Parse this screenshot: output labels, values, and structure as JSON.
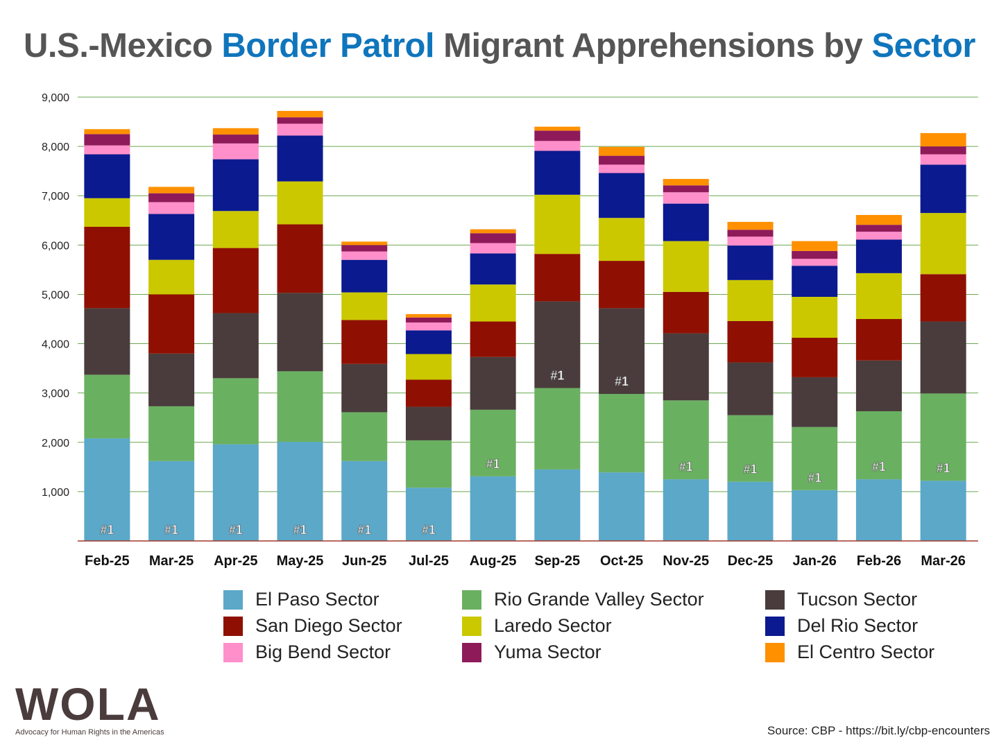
{
  "title": {
    "parts": [
      {
        "text": "U.S.-Mexico ",
        "highlight": false
      },
      {
        "text": "Border Patrol",
        "highlight": true
      },
      {
        "text": " Migrant Apprehensions by ",
        "highlight": false
      },
      {
        "text": "Sector",
        "highlight": true
      }
    ]
  },
  "chart_data": {
    "type": "stacked-bar",
    "title": "U.S.-Mexico Border Patrol Migrant Apprehensions by Sector",
    "categories": [
      "Feb-25",
      "Mar-25",
      "Apr-25",
      "May-25",
      "Jun-25",
      "Jul-25",
      "Aug-25",
      "Sep-25",
      "Oct-25",
      "Nov-25",
      "Dec-25",
      "Jan-26",
      "Feb-26",
      "Mar-26"
    ],
    "ylim": [
      0,
      9000
    ],
    "yticks": [
      "1,000",
      "2,000",
      "3,000",
      "4,000",
      "5,000",
      "6,000",
      "7,000",
      "8,000",
      "9,000"
    ],
    "ytick_values": [
      1000,
      2000,
      3000,
      4000,
      5000,
      6000,
      7000,
      8000,
      9000
    ],
    "grid": true,
    "legend_position": "bottom",
    "top_label": "#1",
    "series": [
      {
        "name": "El Paso Sector",
        "color": "#5ba8c9",
        "values": [
          2080,
          1620,
          1960,
          2010,
          1620,
          1080,
          1310,
          1450,
          1390,
          1250,
          1200,
          1030,
          1250,
          1220
        ]
      },
      {
        "name": "Rio Grande Valley Sector",
        "color": "#6ab061",
        "values": [
          1290,
          1110,
          1340,
          1430,
          990,
          960,
          1350,
          1650,
          1590,
          1600,
          1350,
          1280,
          1380,
          1770
        ]
      },
      {
        "name": "Tucson Sector",
        "color": "#4a3c3c",
        "values": [
          1350,
          1070,
          1320,
          1590,
          980,
          680,
          1070,
          1760,
          1740,
          1360,
          1070,
          1010,
          1030,
          1460
        ]
      },
      {
        "name": "San Diego Sector",
        "color": "#8f1002",
        "values": [
          1650,
          1200,
          1320,
          1390,
          890,
          550,
          720,
          960,
          960,
          840,
          840,
          800,
          840,
          960
        ]
      },
      {
        "name": "Laredo Sector",
        "color": "#cbc800",
        "values": [
          580,
          700,
          750,
          870,
          560,
          520,
          750,
          1200,
          870,
          1030,
          830,
          830,
          930,
          1240
        ]
      },
      {
        "name": "Del Rio Sector",
        "color": "#0b1a8f",
        "values": [
          890,
          930,
          1050,
          930,
          660,
          480,
          630,
          890,
          910,
          760,
          700,
          630,
          680,
          980
        ]
      },
      {
        "name": "Big Bend Sector",
        "color": "#ff8fca",
        "values": [
          180,
          240,
          320,
          240,
          170,
          160,
          210,
          200,
          170,
          230,
          180,
          140,
          160,
          210
        ]
      },
      {
        "name": "Yuma Sector",
        "color": "#8e1a5a",
        "values": [
          230,
          180,
          180,
          130,
          130,
          100,
          200,
          210,
          180,
          140,
          140,
          160,
          140,
          160
        ]
      },
      {
        "name": "El Centro Sector",
        "color": "#ff9000",
        "values": [
          100,
          130,
          130,
          130,
          70,
          70,
          80,
          80,
          180,
          130,
          160,
          200,
          200,
          270
        ]
      }
    ]
  },
  "logo": {
    "text": "WOLA",
    "tagline": "Advocacy for Human Rights in the Americas"
  },
  "source": "Source: CBP - https://bit.ly/cbp-encounters"
}
